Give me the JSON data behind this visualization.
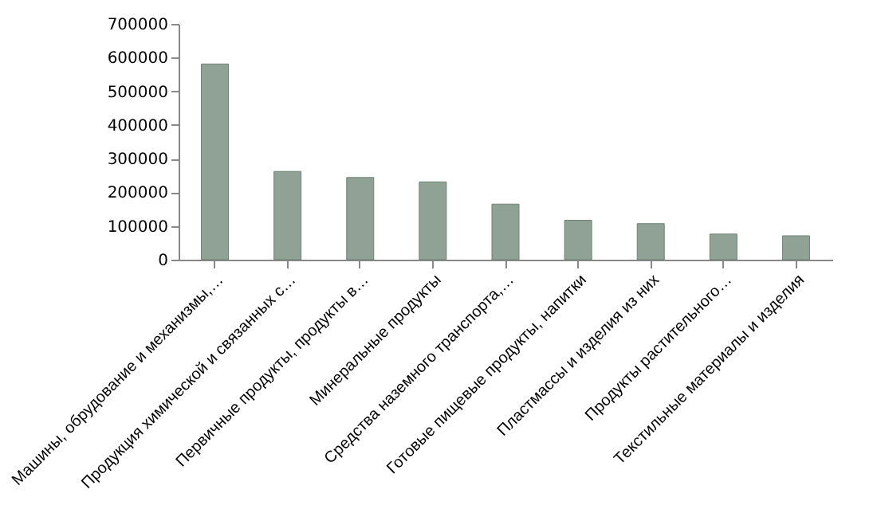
{
  "chart_data": {
    "type": "bar",
    "categories": [
      "Машины, обрудование и механизмы,…",
      "Продукция химической и связанных с…",
      "Первичные продукты, продукты в…",
      "Минеральные продукты",
      "Средства наземного транспорта,…",
      "Готовые пищевые продукты, напитки",
      "Пластмассы и изделия из них",
      "Продукты растительного…",
      "Текстильные материалы и изделия"
    ],
    "values": [
      581000,
      262000,
      244000,
      231000,
      165000,
      117000,
      107000,
      76000,
      71000
    ],
    "color": "#8fa295",
    "ylim": [
      0,
      700000
    ],
    "yticks": [
      0,
      100000,
      200000,
      300000,
      400000,
      500000,
      600000,
      700000
    ],
    "grid": false
  }
}
